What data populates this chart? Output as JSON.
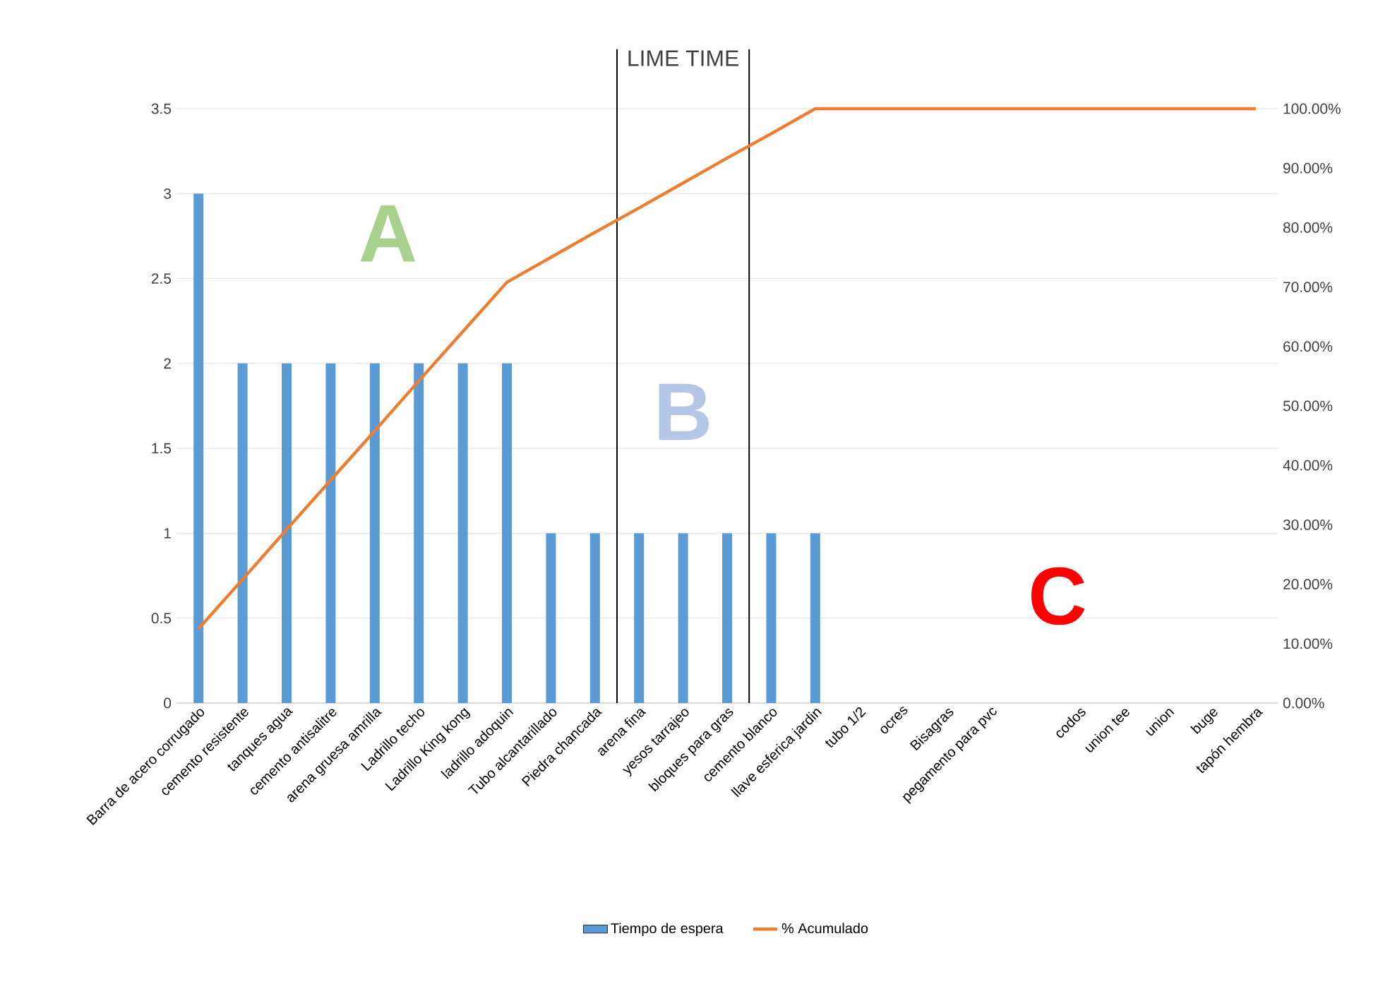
{
  "chart_data": {
    "type": "bar",
    "title": "LIME TIME",
    "categories": [
      "Barra de acero corrugado",
      "cemento resistente",
      "tanques agua",
      "cemento antisalitre",
      "arena gruesa amrilla",
      "Ladrillo techo",
      "Ladrillo King kong",
      "ladrillo adoquin",
      "Tubo alcantarillado",
      "Piedra chancada",
      "arena fina",
      "yesos tarrajeo",
      "bloques para gras",
      "cemento blanco",
      "llave esferica jardin",
      "tubo 1/2",
      "ocres",
      "Bisagras",
      "pegamento para pvc",
      null,
      "codos",
      "union tee",
      "union",
      "buge",
      "tapón hembra"
    ],
    "series": [
      {
        "name": "Tiempo de espera",
        "color": "#5b9bd5",
        "values": [
          3,
          2,
          2,
          2,
          2,
          2,
          2,
          2,
          1,
          1,
          1,
          1,
          1,
          1,
          1,
          0,
          0,
          0,
          0,
          0,
          0,
          0,
          0,
          0,
          0
        ]
      },
      {
        "name": "% Acumulado",
        "type": "line",
        "axis": "y2",
        "color": "#ed7d31",
        "values": [
          12.5,
          20.8,
          29.2,
          37.5,
          45.8,
          54.2,
          62.5,
          70.8,
          75,
          79.2,
          83.3,
          87.5,
          91.7,
          95.8,
          100,
          100,
          100,
          100,
          100,
          100,
          100,
          100,
          100,
          100,
          100
        ]
      }
    ],
    "ylim": [
      0,
      3.5
    ],
    "yticks": [
      0,
      0.5,
      1,
      1.5,
      2,
      2.5,
      3,
      3.5
    ],
    "y2lim": [
      0,
      100
    ],
    "y2ticks": [
      {
        "value": 0,
        "label": "0.00%"
      },
      {
        "value": 10,
        "label": "10.00%"
      },
      {
        "value": 20,
        "label": "20.00%"
      },
      {
        "value": 30,
        "label": "30.00%"
      },
      {
        "value": 40,
        "label": "40.00%"
      },
      {
        "value": 50,
        "label": "50.00%"
      },
      {
        "value": 60,
        "label": "60.00%"
      },
      {
        "value": 70,
        "label": "70.00%"
      },
      {
        "value": 80,
        "label": "80.00%"
      },
      {
        "value": 90,
        "label": "90.00%"
      },
      {
        "value": 100,
        "label": "100.00%"
      }
    ],
    "annotations": [
      "A",
      "B",
      "C"
    ],
    "grid": "y",
    "legend": "bottom",
    "marker": "none"
  }
}
